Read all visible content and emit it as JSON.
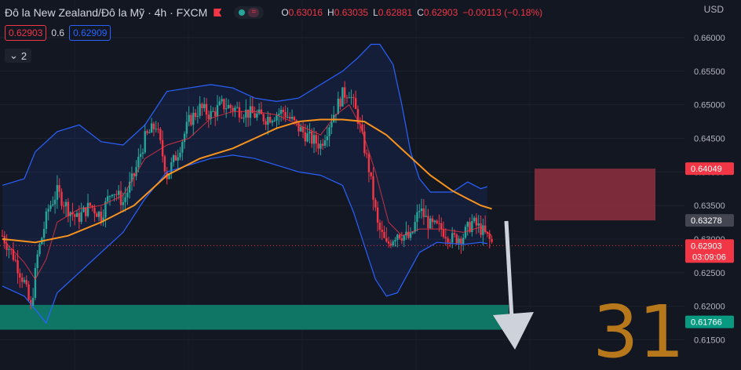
{
  "header": {
    "title": "Đô la New Zealand/Đô la Mỹ · 4h · FXCM",
    "ohlc": [
      {
        "k": "O",
        "v": "0.63016"
      },
      {
        "k": "H",
        "v": "0.63035"
      },
      {
        "k": "L",
        "v": "0.62881"
      },
      {
        "k": "C",
        "v": "0.62903"
      },
      {
        "k": "",
        "v": "−0.00113 (−0.18%)"
      }
    ],
    "sell_price": "0.62903",
    "spread": "0.6",
    "buy_price": "0.62909",
    "indicators_toggle": "2",
    "currency": "USD"
  },
  "colors": {
    "background": "#131722",
    "up": "#26a69a",
    "down": "#f23645",
    "ema": "#f7931e",
    "bollinger": "#2962ff",
    "fast_ma": "#f23645",
    "tp_zone": "#0f7a68",
    "sl_zone": "#8e2f3d",
    "arrow": "#ced2db",
    "watermark": "#d4891a"
  },
  "chart_data": {
    "type": "candlestick",
    "symbol": "NZD/USD",
    "timeframe": "4h",
    "ylim": [
      0.614,
      0.6635
    ],
    "y_ticks": [
      "0.66000",
      "0.65500",
      "0.65000",
      "0.64500",
      "0.64000",
      "0.63500",
      "0.63000",
      "0.62500",
      "0.62000",
      "0.61500"
    ],
    "price_labels": [
      {
        "value": 0.64049,
        "text": "0.64049",
        "color": "#f23645"
      },
      {
        "value": 0.63278,
        "text": "0.63278",
        "color": "#434651"
      },
      {
        "value": 0.62903,
        "text": "0.62903",
        "sub": "03:09:06",
        "color": "#f23645"
      },
      {
        "value": 0.61766,
        "text": "0.61766",
        "color": "#089981"
      }
    ],
    "current_price": 0.62903,
    "countdown": "03:09:06",
    "price_path": [
      [
        0,
        0.6305
      ],
      [
        5,
        0.6275
      ],
      [
        10,
        0.6235
      ],
      [
        13,
        0.6195
      ],
      [
        16,
        0.6275
      ],
      [
        21,
        0.6345
      ],
      [
        25,
        0.637
      ],
      [
        30,
        0.6345
      ],
      [
        34,
        0.633
      ],
      [
        40,
        0.635
      ],
      [
        45,
        0.6335
      ],
      [
        50,
        0.6375
      ],
      [
        55,
        0.6355
      ],
      [
        60,
        0.6395
      ],
      [
        65,
        0.645
      ],
      [
        70,
        0.647
      ],
      [
        75,
        0.6395
      ],
      [
        80,
        0.643
      ],
      [
        85,
        0.6475
      ],
      [
        90,
        0.6495
      ],
      [
        95,
        0.6485
      ],
      [
        100,
        0.65
      ],
      [
        110,
        0.649
      ],
      [
        120,
        0.648
      ],
      [
        128,
        0.649
      ],
      [
        135,
        0.6465
      ],
      [
        140,
        0.645
      ],
      [
        145,
        0.644
      ],
      [
        150,
        0.648
      ],
      [
        155,
        0.6515
      ],
      [
        158,
        0.652
      ],
      [
        162,
        0.648
      ],
      [
        167,
        0.6405
      ],
      [
        171,
        0.632
      ],
      [
        175,
        0.629
      ],
      [
        180,
        0.631
      ],
      [
        186,
        0.63
      ],
      [
        190,
        0.6345
      ],
      [
        195,
        0.632
      ],
      [
        200,
        0.6315
      ],
      [
        205,
        0.63
      ],
      [
        210,
        0.6305
      ],
      [
        214,
        0.6325
      ],
      [
        218,
        0.6315
      ],
      [
        224,
        0.629
      ]
    ],
    "ema_line": [
      [
        0,
        0.63
      ],
      [
        15,
        0.6295
      ],
      [
        30,
        0.6305
      ],
      [
        45,
        0.6325
      ],
      [
        60,
        0.635
      ],
      [
        75,
        0.6395
      ],
      [
        90,
        0.642
      ],
      [
        105,
        0.6435
      ],
      [
        115,
        0.645
      ],
      [
        125,
        0.6465
      ],
      [
        135,
        0.6475
      ],
      [
        145,
        0.6478
      ],
      [
        155,
        0.6478
      ],
      [
        165,
        0.6475
      ],
      [
        175,
        0.6455
      ],
      [
        185,
        0.6425
      ],
      [
        195,
        0.6395
      ],
      [
        205,
        0.6372
      ],
      [
        212,
        0.636
      ],
      [
        218,
        0.635
      ],
      [
        223,
        0.6345
      ]
    ],
    "bollinger_upper": [
      [
        0,
        0.638
      ],
      [
        10,
        0.639
      ],
      [
        15,
        0.643
      ],
      [
        25,
        0.646
      ],
      [
        35,
        0.647
      ],
      [
        45,
        0.6445
      ],
      [
        55,
        0.644
      ],
      [
        65,
        0.647
      ],
      [
        75,
        0.652
      ],
      [
        85,
        0.6525
      ],
      [
        95,
        0.653
      ],
      [
        105,
        0.6525
      ],
      [
        115,
        0.651
      ],
      [
        125,
        0.6505
      ],
      [
        135,
        0.651
      ],
      [
        145,
        0.653
      ],
      [
        155,
        0.655
      ],
      [
        162,
        0.657
      ],
      [
        168,
        0.659
      ],
      [
        172,
        0.659
      ],
      [
        178,
        0.656
      ],
      [
        182,
        0.65
      ],
      [
        186,
        0.643
      ],
      [
        190,
        0.639
      ],
      [
        195,
        0.637
      ],
      [
        205,
        0.637
      ],
      [
        212,
        0.6385
      ],
      [
        218,
        0.6375
      ],
      [
        221,
        0.6378
      ]
    ],
    "bollinger_lower": [
      [
        0,
        0.623
      ],
      [
        10,
        0.6215
      ],
      [
        15,
        0.6195
      ],
      [
        20,
        0.6175
      ],
      [
        25,
        0.622
      ],
      [
        35,
        0.625
      ],
      [
        45,
        0.628
      ],
      [
        55,
        0.631
      ],
      [
        65,
        0.636
      ],
      [
        75,
        0.64
      ],
      [
        85,
        0.641
      ],
      [
        95,
        0.642
      ],
      [
        105,
        0.6425
      ],
      [
        115,
        0.642
      ],
      [
        125,
        0.641
      ],
      [
        135,
        0.64
      ],
      [
        145,
        0.6395
      ],
      [
        155,
        0.638
      ],
      [
        160,
        0.634
      ],
      [
        165,
        0.629
      ],
      [
        170,
        0.624
      ],
      [
        175,
        0.6215
      ],
      [
        180,
        0.622
      ],
      [
        185,
        0.625
      ],
      [
        190,
        0.628
      ],
      [
        198,
        0.6295
      ],
      [
        210,
        0.6292
      ],
      [
        218,
        0.6295
      ],
      [
        221,
        0.6293
      ]
    ],
    "fast_ma": [
      [
        0,
        0.63
      ],
      [
        10,
        0.6265
      ],
      [
        15,
        0.624
      ],
      [
        20,
        0.627
      ],
      [
        25,
        0.6325
      ],
      [
        35,
        0.6345
      ],
      [
        45,
        0.635
      ],
      [
        55,
        0.6365
      ],
      [
        65,
        0.642
      ],
      [
        75,
        0.644
      ],
      [
        85,
        0.645
      ],
      [
        95,
        0.648
      ],
      [
        105,
        0.649
      ],
      [
        115,
        0.649
      ],
      [
        125,
        0.6485
      ],
      [
        135,
        0.647
      ],
      [
        145,
        0.6455
      ],
      [
        152,
        0.6485
      ],
      [
        158,
        0.65
      ],
      [
        163,
        0.647
      ],
      [
        170,
        0.64
      ],
      [
        176,
        0.6325
      ],
      [
        182,
        0.6305
      ],
      [
        190,
        0.6315
      ],
      [
        200,
        0.6315
      ],
      [
        210,
        0.631
      ],
      [
        218,
        0.6318
      ],
      [
        223,
        0.6305
      ]
    ],
    "zones": [
      {
        "name": "stop-loss",
        "from": 0.63278,
        "to": 0.64049
      },
      {
        "name": "take-profit",
        "from": 0.61766,
        "to": 0.63278
      },
      {
        "name": "support",
        "from": 0.6165,
        "to": 0.6202
      }
    ],
    "watermark": "318"
  }
}
